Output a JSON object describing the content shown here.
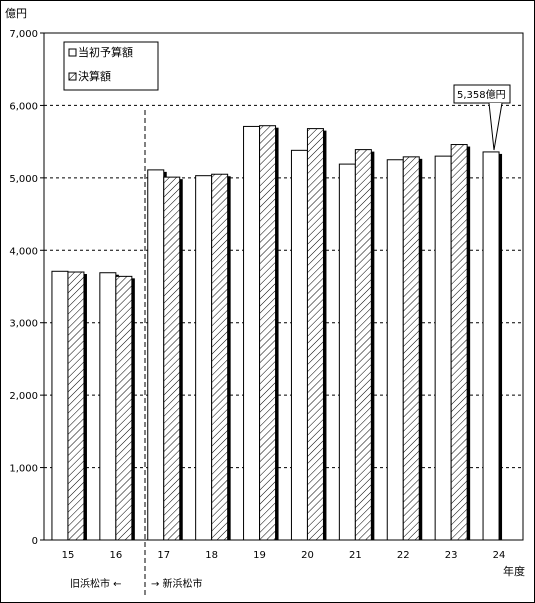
{
  "chart_data": {
    "type": "bar",
    "unit_label": "億円",
    "xlabel": "年度",
    "categories": [
      "15",
      "16",
      "17",
      "18",
      "19",
      "20",
      "21",
      "22",
      "23",
      "24"
    ],
    "series": [
      {
        "name": "当初予算額",
        "values": [
          3710,
          3690,
          5110,
          5030,
          5710,
          5380,
          5190,
          5250,
          5300,
          5358
        ],
        "fill": "white"
      },
      {
        "name": "決算額",
        "values": [
          3700,
          3640,
          5010,
          5050,
          5720,
          5680,
          5390,
          5290,
          5460,
          null
        ],
        "fill": "hatched"
      }
    ],
    "ylim": [
      0,
      7000
    ],
    "yticks": [
      "0",
      "1,000",
      "2,000",
      "3,000",
      "4,000",
      "5,000",
      "6,000",
      "7,000"
    ],
    "grid": "dashed-horizontal",
    "legend_position": "top-left",
    "callout": {
      "category": "24",
      "text": "5,358億円"
    },
    "era_divider": {
      "between": [
        "16",
        "17"
      ],
      "left_text": "旧浜松市 ←",
      "right_text": "→ 新浜松市"
    },
    "colors": {
      "bar_fill": "#ffffff",
      "stroke": "#000000",
      "shadow": "#000000",
      "grid": "#000000"
    }
  }
}
